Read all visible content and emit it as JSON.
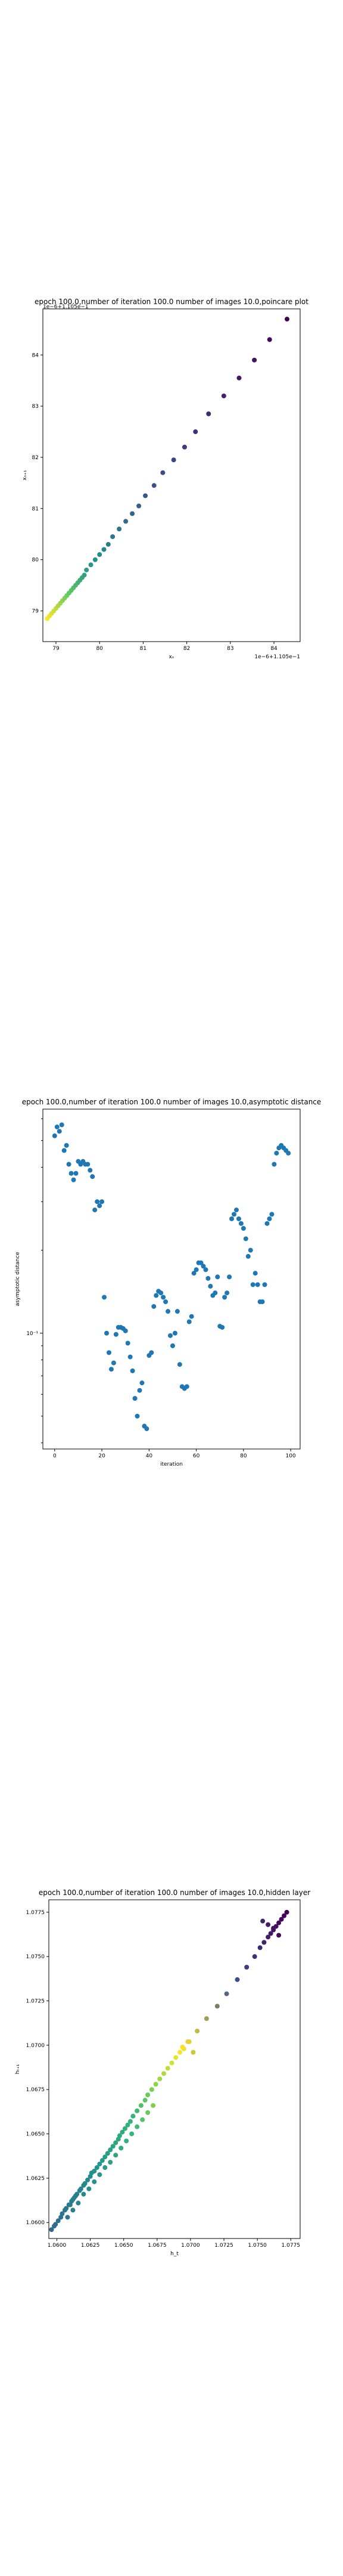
{
  "chart_data": [
    {
      "type": "scatter",
      "title": "epoch 100.0,number of iteration 100.0 number of images 10.0,poincare plot",
      "xlabel": "xₙ",
      "ylabel": "xₙ₊₁",
      "x_offset_label": "1e−6+1.105e−1",
      "y_offset_label": "1e−6+1.105e−1",
      "x_ticks": [
        "79",
        "80",
        "81",
        "82",
        "83",
        "84"
      ],
      "y_ticks": [
        "79",
        "80",
        "81",
        "82",
        "83",
        "84"
      ],
      "xlim": [
        78.7,
        84.6
      ],
      "ylim": [
        78.4,
        84.9
      ],
      "colormap": [
        "#fde725",
        "#5ec962",
        "#21918c",
        "#3b528b",
        "#440154"
      ],
      "series": [
        {
          "x": [
            78.8,
            78.85,
            78.9,
            78.95,
            79.0,
            79.05,
            79.1,
            79.15,
            79.2,
            79.25,
            79.3,
            79.35,
            79.4,
            79.45,
            79.5,
            79.55,
            79.6,
            79.65,
            79.7,
            79.8,
            79.9,
            80.0,
            80.1,
            80.2,
            80.3,
            80.45,
            80.6,
            80.75,
            80.9,
            81.05,
            81.25,
            81.45,
            81.7,
            81.95,
            82.2,
            82.5,
            82.85,
            83.2,
            83.55,
            83.9,
            84.3
          ],
          "y": [
            78.85,
            78.9,
            78.95,
            79.0,
            79.05,
            79.1,
            79.15,
            79.2,
            79.25,
            79.3,
            79.35,
            79.4,
            79.45,
            79.5,
            79.55,
            79.6,
            79.65,
            79.7,
            79.8,
            79.9,
            80.0,
            80.1,
            80.2,
            80.3,
            80.45,
            80.6,
            80.75,
            80.9,
            81.05,
            81.25,
            81.45,
            81.7,
            81.95,
            82.2,
            82.5,
            82.85,
            83.2,
            83.55,
            83.9,
            84.3,
            84.7
          ]
        }
      ]
    },
    {
      "type": "scatter",
      "title": "epoch 100.0,number of iteration 100.0  number of images 10.0,asymptotic distance",
      "xlabel": "iteration",
      "ylabel": "asymptotic distance",
      "y_scale": "log",
      "x_ticks": [
        "0",
        "20",
        "40",
        "60",
        "80",
        "100"
      ],
      "y_tick_label": "10⁻¹",
      "xlim": [
        -5,
        104
      ],
      "color": "#1f77b4",
      "series": [
        {
          "x": [
            0,
            1,
            2,
            3,
            4,
            5,
            6,
            7,
            8,
            9,
            10,
            11,
            12,
            13,
            14,
            15,
            16,
            17,
            18,
            19,
            20,
            21,
            22,
            23,
            24,
            25,
            26,
            27,
            28,
            29,
            30,
            31,
            32,
            33,
            34,
            35,
            36,
            37,
            38,
            39,
            40,
            41,
            42,
            43,
            44,
            45,
            46,
            47,
            48,
            49,
            50,
            51,
            52,
            53,
            54,
            55,
            56,
            57,
            58,
            59,
            60,
            61,
            62,
            63,
            64,
            65,
            66,
            67,
            68,
            69,
            70,
            71,
            72,
            73,
            74,
            75,
            76,
            77,
            78,
            79,
            80,
            81,
            82,
            83,
            84,
            85,
            86,
            87,
            88,
            89,
            90,
            91,
            92,
            93,
            94,
            95,
            96,
            97,
            98,
            99
          ],
          "y": [
            0.52,
            0.56,
            0.54,
            0.57,
            0.46,
            0.48,
            0.41,
            0.38,
            0.36,
            0.38,
            0.42,
            0.41,
            0.42,
            0.41,
            0.41,
            0.39,
            0.37,
            0.28,
            0.3,
            0.29,
            0.3,
            0.135,
            0.1,
            0.085,
            0.074,
            0.078,
            0.099,
            0.105,
            0.105,
            0.104,
            0.102,
            0.092,
            0.082,
            0.073,
            0.058,
            0.05,
            0.062,
            0.066,
            0.046,
            0.045,
            0.083,
            0.085,
            0.125,
            0.137,
            0.142,
            0.14,
            0.135,
            0.13,
            0.12,
            0.098,
            0.09,
            0.1,
            0.12,
            0.077,
            0.064,
            0.063,
            0.064,
            0.11,
            0.115,
            0.165,
            0.17,
            0.18,
            0.18,
            0.175,
            0.17,
            0.158,
            0.148,
            0.137,
            0.14,
            0.16,
            0.106,
            0.105,
            0.135,
            0.14,
            0.16,
            0.26,
            0.27,
            0.28,
            0.26,
            0.25,
            0.24,
            0.22,
            0.19,
            0.2,
            0.15,
            0.165,
            0.15,
            0.13,
            0.13,
            0.15,
            0.25,
            0.26,
            0.27,
            0.41,
            0.45,
            0.47,
            0.48,
            0.47,
            0.46,
            0.45
          ]
        }
      ]
    },
    {
      "type": "scatter",
      "title": "epoch 100.0,number of iteration 100.0  number of images 10.0,hidden layer",
      "xlabel": "h_t",
      "ylabel": "hₜ₊₁",
      "x_ticks": [
        "1.0600",
        "1.0625",
        "1.0650",
        "1.0675",
        "1.0700",
        "1.0725",
        "1.0750",
        "1.0775"
      ],
      "y_ticks": [
        "1.0600",
        "1.0625",
        "1.0650",
        "1.0675",
        "1.0700",
        "1.0725",
        "1.0750",
        "1.0775"
      ],
      "xlim": [
        1.0594,
        1.0782
      ],
      "ylim": [
        1.0591,
        1.0782
      ],
      "colormap": [
        "#fde725",
        "#5ec962",
        "#21918c",
        "#3b528b",
        "#440154"
      ],
      "series": [
        {
          "x": [
            1.0596,
            1.0598,
            1.0599,
            1.0601,
            1.0603,
            1.0604,
            1.0606,
            1.0607,
            1.0609,
            1.061,
            1.0611,
            1.0612,
            1.0613,
            1.0614,
            1.0615,
            1.0617,
            1.0618,
            1.062,
            1.0621,
            1.0623,
            1.0625,
            1.0626,
            1.0628,
            1.063,
            1.0632,
            1.0634,
            1.0636,
            1.0638,
            1.064,
            1.0642,
            1.0644,
            1.0646,
            1.0647,
            1.0649,
            1.0651,
            1.0653,
            1.0655,
            1.0657,
            1.066,
            1.0663,
            1.0666,
            1.0668,
            1.0671,
            1.0674,
            1.0677,
            1.068,
            1.0683,
            1.0686,
            1.0689,
            1.0692,
            1.0695,
            1.0699,
            1.0705,
            1.0712,
            1.072,
            1.0727,
            1.0735,
            1.0742,
            1.0748,
            1.0752,
            1.0755,
            1.0758,
            1.076,
            1.0762,
            1.0764,
            1.0766,
            1.0768,
            1.077,
            1.0772,
            1.0766,
            1.0762,
            1.0758,
            1.0754,
            1.0648,
            1.0652,
            1.0656,
            1.066,
            1.0664,
            1.0668,
            1.0672,
            1.0644,
            1.064,
            1.0636,
            1.0632,
            1.0628,
            1.0624,
            1.062,
            1.0616,
            1.0612,
            1.0608,
            1.0694,
            1.0698,
            1.0702
          ],
          "y": [
            1.0596,
            1.0598,
            1.0599,
            1.0601,
            1.0603,
            1.0605,
            1.0607,
            1.0608,
            1.061,
            1.061,
            1.0612,
            1.0613,
            1.0614,
            1.0615,
            1.0616,
            1.0618,
            1.0619,
            1.0621,
            1.0622,
            1.0624,
            1.0626,
            1.0628,
            1.0629,
            1.0631,
            1.0633,
            1.0635,
            1.0637,
            1.0639,
            1.0641,
            1.0643,
            1.0645,
            1.0647,
            1.0649,
            1.0651,
            1.0653,
            1.0655,
            1.0657,
            1.066,
            1.0663,
            1.0666,
            1.0669,
            1.0672,
            1.0675,
            1.0678,
            1.0681,
            1.0684,
            1.0687,
            1.069,
            1.0693,
            1.0696,
            1.0698,
            1.0702,
            1.0708,
            1.0715,
            1.0722,
            1.0729,
            1.0737,
            1.0744,
            1.075,
            1.0755,
            1.0758,
            1.0761,
            1.0763,
            1.0765,
            1.0767,
            1.0769,
            1.0771,
            1.0773,
            1.0775,
            1.0762,
            1.0766,
            1.0768,
            1.077,
            1.0642,
            1.0646,
            1.065,
            1.0654,
            1.0658,
            1.0662,
            1.0666,
            1.0638,
            1.0634,
            1.0631,
            1.0627,
            1.0623,
            1.0619,
            1.0616,
            1.0611,
            1.0607,
            1.0603,
            1.0699,
            1.0702,
            1.0696
          ]
        }
      ]
    }
  ]
}
